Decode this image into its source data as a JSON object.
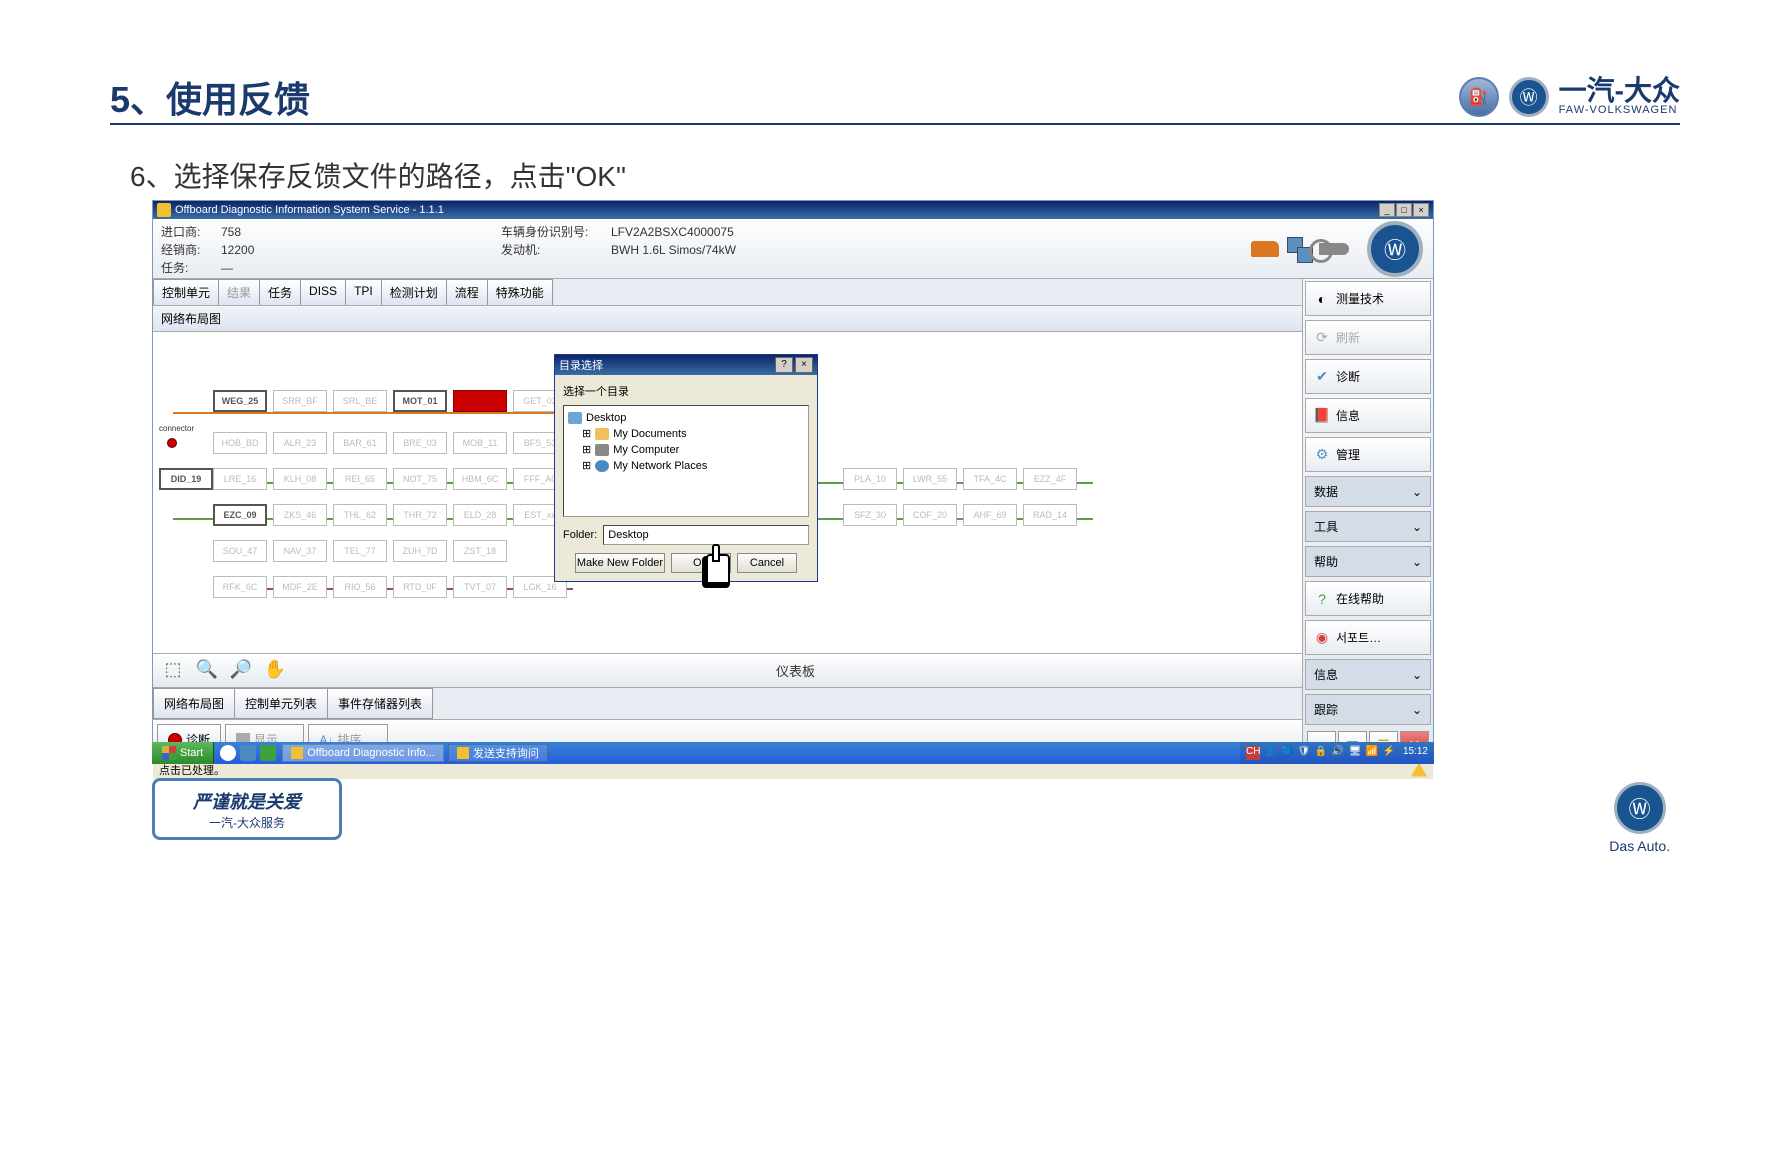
{
  "slide": {
    "title": "5、使用反馈",
    "subtitle": "6、选择保存反馈文件的路径，点击\"OK\"",
    "brand_cn": "一汽-大众",
    "brand_en": "FAW-VOLKSWAGEN",
    "footer_badge_line1": "严谨就是关爱",
    "footer_badge_line2": "一汽-大众服务",
    "das_auto": "Das Auto."
  },
  "app": {
    "window_title": "Offboard Diagnostic Information System Service - 1.1.1",
    "info": {
      "importer_label": "进口商:",
      "importer": "758",
      "dealer_label": "经销商:",
      "dealer": "12200",
      "task_label": "任务:",
      "task": "—",
      "vin_label": "车辆身份识别号:",
      "vin": "LFV2A2BSXC4000075",
      "engine_label": "发动机:",
      "engine": "BWH 1.6L Simos/74kW"
    },
    "tabs": [
      "控制单元",
      "结果",
      "任务",
      "DISS",
      "TPI",
      "检测计划",
      "流程",
      "特殊功能"
    ],
    "tab_disabled_index": 1,
    "panel_title": "网络布局图",
    "toolbar_center": "仪表板",
    "bottom_tabs": [
      "网络布局图",
      "控制单元列表",
      "事件存储器列表"
    ],
    "actions": {
      "diag": "诊断",
      "display": "显示 …",
      "sort": "排序 …"
    },
    "status_text": "点击已处理。"
  },
  "diagram": {
    "connector_label": "connector",
    "row1": [
      {
        "label": "WEG_25",
        "style": "solid"
      },
      {
        "label": "SRR_BF",
        "style": "faded"
      },
      {
        "label": "SRL_BE",
        "style": "faded"
      },
      {
        "label": "MOT_01",
        "style": "solid"
      },
      {
        "label": "AIR_06",
        "style": "red"
      },
      {
        "label": "GET_02",
        "style": "faded"
      }
    ],
    "row2": [
      {
        "label": "HOB_BD",
        "style": "faded"
      },
      {
        "label": "ALR_23",
        "style": "faded"
      },
      {
        "label": "BAR_61",
        "style": "faded"
      },
      {
        "label": "BRE_03",
        "style": "faded"
      },
      {
        "label": "MOB_11",
        "style": "faded"
      },
      {
        "label": "BFS_53",
        "style": "faded"
      }
    ],
    "row3_left": {
      "label": "DID_19",
      "style": "solid"
    },
    "row3": [
      {
        "label": "LRE_16",
        "style": "faded"
      },
      {
        "label": "KLH_08",
        "style": "faded"
      },
      {
        "label": "REI_65",
        "style": "faded"
      },
      {
        "label": "NOT_75",
        "style": "faded"
      },
      {
        "label": "HBM_6C",
        "style": "faded"
      },
      {
        "label": "FFF_A0",
        "style": "faded"
      }
    ],
    "row3_right": [
      {
        "label": "PLA_10",
        "style": "faded"
      },
      {
        "label": "LWR_55",
        "style": "faded"
      },
      {
        "label": "TFA_4C",
        "style": "faded"
      },
      {
        "label": "EZZ_4F",
        "style": "faded"
      }
    ],
    "row4_left": {
      "label": "EZC_09",
      "style": "solid"
    },
    "row4": [
      {
        "label": "ZKS_46",
        "style": "faded"
      },
      {
        "label": "THL_62",
        "style": "faded"
      },
      {
        "label": "THR_72",
        "style": "faded"
      },
      {
        "label": "ELD_28",
        "style": "faded"
      },
      {
        "label": "EST_xx",
        "style": "faded"
      }
    ],
    "row4_right": [
      {
        "label": "SFZ_30",
        "style": "faded"
      },
      {
        "label": "COF_20",
        "style": "faded"
      },
      {
        "label": "AHF_69",
        "style": "faded"
      },
      {
        "label": "RAD_14",
        "style": "faded"
      }
    ],
    "row5": [
      {
        "label": "SOU_47",
        "style": "faded"
      },
      {
        "label": "NAV_37",
        "style": "faded"
      },
      {
        "label": "TEL_77",
        "style": "faded"
      },
      {
        "label": "ZUH_7D",
        "style": "faded"
      },
      {
        "label": "ZST_18",
        "style": "faded"
      }
    ],
    "row6": [
      {
        "label": "RFK_6C",
        "style": "faded"
      },
      {
        "label": "MDF_2E",
        "style": "faded"
      },
      {
        "label": "RIO_56",
        "style": "faded"
      },
      {
        "label": "RTD_0F",
        "style": "faded"
      },
      {
        "label": "TVT_07",
        "style": "faded"
      },
      {
        "label": "LGK_16",
        "style": "faded"
      }
    ]
  },
  "sidebar": {
    "btn_measure": "测量技术",
    "btn_refresh": "刷新",
    "btn_diag": "诊断",
    "btn_info": "信息",
    "btn_manage": "管理",
    "section_data": "数据",
    "section_tools": "工具",
    "section_help": "帮助",
    "btn_online_help": "在线帮助",
    "btn_support": "서포트…",
    "section_info": "信息",
    "section_trace": "跟踪",
    "chevron": "»"
  },
  "dialog": {
    "title": "目录选择",
    "instruction": "选择一个目录",
    "tree": {
      "desktop": "Desktop",
      "my_docs": "My Documents",
      "my_comp": "My Computer",
      "my_net": "My Network Places"
    },
    "folder_label": "Folder:",
    "folder_value": "Desktop",
    "btn_new": "Make New Folder",
    "btn_ok": "OK",
    "btn_cancel": "Cancel"
  },
  "taskbar": {
    "start": "Start",
    "items": [
      "Offboard Diagnostic Info...",
      "发送支持询问"
    ],
    "time": "15:12"
  },
  "colors": {
    "header_blue": "#1a3a6e",
    "vw_blue": "#1a5490",
    "titlebar_grad_a": "#0b246a",
    "titlebar_grad_b": "#3a6ea5",
    "node_red": "#cc0000",
    "bus_orange": "#d97820",
    "bus_green": "#5a9e4a",
    "taskbar_blue": "#245edb"
  }
}
